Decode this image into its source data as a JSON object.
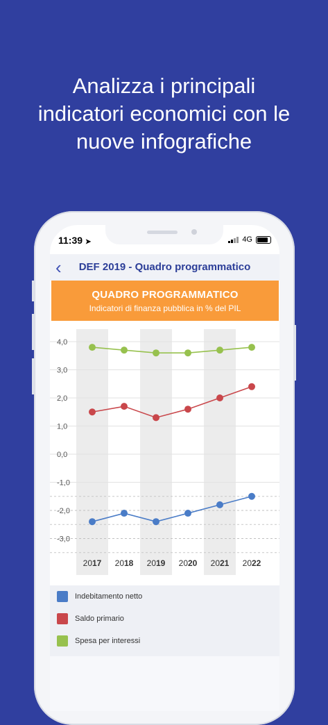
{
  "headline": [
    "Analizza i principali",
    "indicatori economici con le",
    "nuove infografiche"
  ],
  "status": {
    "time": "11:39",
    "network": "4G"
  },
  "nav": {
    "title": "DEF 2019 - Quadro programmatico",
    "back_icon": "chevron-left-icon"
  },
  "banner": {
    "title": "QUADRO PROGRAMMATICO",
    "subtitle": "Indicatori di finanza pubblica in % del PIL"
  },
  "colors": {
    "background": "#303F9F",
    "banner": "#F99B3A",
    "indebitamento": "#4A7CC7",
    "saldo": "#C9474B",
    "spesa": "#97C14E"
  },
  "chart_data": {
    "type": "line",
    "x": [
      "2017",
      "2018",
      "2019",
      "2020",
      "2021",
      "2022"
    ],
    "x_tick_labels": [
      [
        "20",
        "17"
      ],
      [
        "20",
        "18"
      ],
      [
        "20",
        "19"
      ],
      [
        "20",
        "20"
      ],
      [
        "20",
        "21"
      ],
      [
        "20",
        "22"
      ]
    ],
    "ylim": [
      -3.5,
      4.0
    ],
    "yticks": [
      "4,0",
      "3,0",
      "2,0",
      "1,0",
      "0,0",
      "-1,0",
      "-2,0",
      "-3,0"
    ],
    "ytick_values": [
      4,
      3,
      2,
      1,
      0,
      -1,
      -2,
      -3
    ],
    "grid": true,
    "legend_position": "bottom",
    "series": [
      {
        "name": "Indebitamento netto",
        "color": "#4A7CC7",
        "values": [
          -2.4,
          -2.1,
          -2.4,
          -2.1,
          -1.8,
          -1.5
        ]
      },
      {
        "name": "Saldo primario",
        "color": "#C9474B",
        "values": [
          1.5,
          1.7,
          1.3,
          1.6,
          2.0,
          2.4
        ]
      },
      {
        "name": "Spesa per interessi",
        "color": "#97C14E",
        "values": [
          3.8,
          3.7,
          3.6,
          3.6,
          3.7,
          3.8
        ]
      }
    ]
  }
}
